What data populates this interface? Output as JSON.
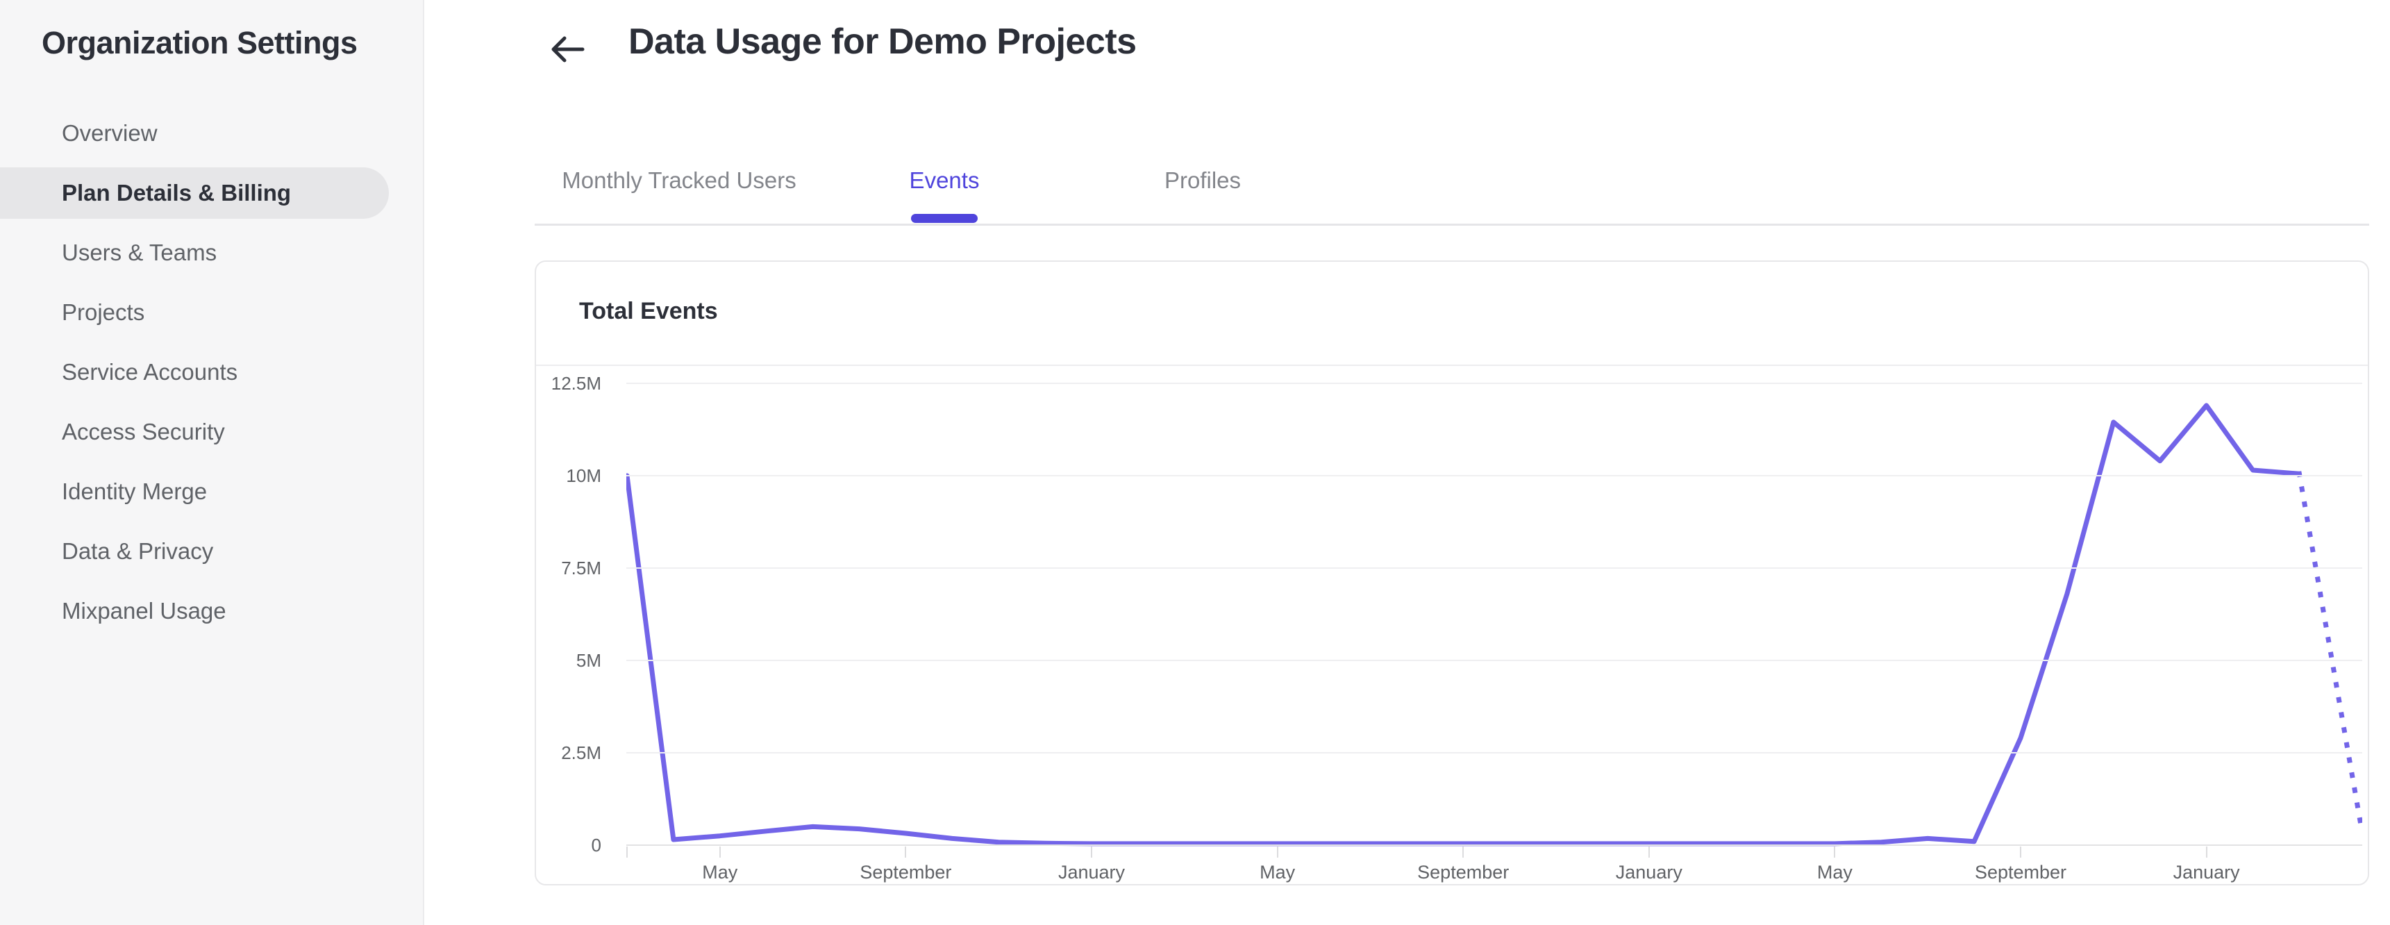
{
  "sidebar": {
    "title": "Organization Settings",
    "items": [
      {
        "label": "Overview",
        "active": false
      },
      {
        "label": "Plan Details & Billing",
        "active": true
      },
      {
        "label": "Users & Teams",
        "active": false
      },
      {
        "label": "Projects",
        "active": false
      },
      {
        "label": "Service Accounts",
        "active": false
      },
      {
        "label": "Access Security",
        "active": false
      },
      {
        "label": "Identity Merge",
        "active": false
      },
      {
        "label": "Data & Privacy",
        "active": false
      },
      {
        "label": "Mixpanel Usage",
        "active": false
      }
    ]
  },
  "header": {
    "title": "Data Usage for Demo Projects",
    "back_icon": "arrow-left-icon"
  },
  "tabs": [
    {
      "label": "Monthly Tracked Users",
      "active": false
    },
    {
      "label": "Events",
      "active": true
    },
    {
      "label": "Profiles",
      "active": false
    }
  ],
  "colors": {
    "accent": "#4f44dc",
    "line": "#7264e8",
    "sidebar_bg": "#f6f6f7",
    "selected_pill": "#e6e6e8",
    "text_dark": "#2c2f38",
    "text_gray": "#5f6267",
    "gridline": "#efeff1"
  },
  "chart_data": {
    "type": "line",
    "title": "Total Events",
    "xlabel": "",
    "ylabel": "",
    "ylim_events": [
      0,
      12500000
    ],
    "y_tick_labels": [
      "12.5M",
      "10M",
      "7.5M",
      "5M",
      "2.5M",
      "0"
    ],
    "x_tick_labels": [
      "May",
      "September",
      "January",
      "May",
      "September",
      "January",
      "May",
      "September",
      "January"
    ],
    "x_tick_indices": [
      2,
      6,
      10,
      14,
      18,
      22,
      26,
      30,
      34
    ],
    "x_unit": "month",
    "grid": true,
    "legend": false,
    "series": [
      {
        "name": "Total Events",
        "values_millions": [
          10.0,
          0.15,
          0.25,
          0.38,
          0.5,
          0.44,
          0.32,
          0.18,
          0.08,
          0.05,
          0.04,
          0.04,
          0.04,
          0.04,
          0.04,
          0.04,
          0.04,
          0.04,
          0.04,
          0.04,
          0.04,
          0.04,
          0.04,
          0.04,
          0.04,
          0.04,
          0.04,
          0.08,
          0.18,
          0.1,
          2.9,
          6.8,
          11.45,
          10.4,
          11.9,
          10.15,
          10.05
        ]
      }
    ],
    "dotted_tail_value_millions": 0.55,
    "dotted_tail_note": "dashed projection segment dropping from last solid point to chart right edge"
  }
}
